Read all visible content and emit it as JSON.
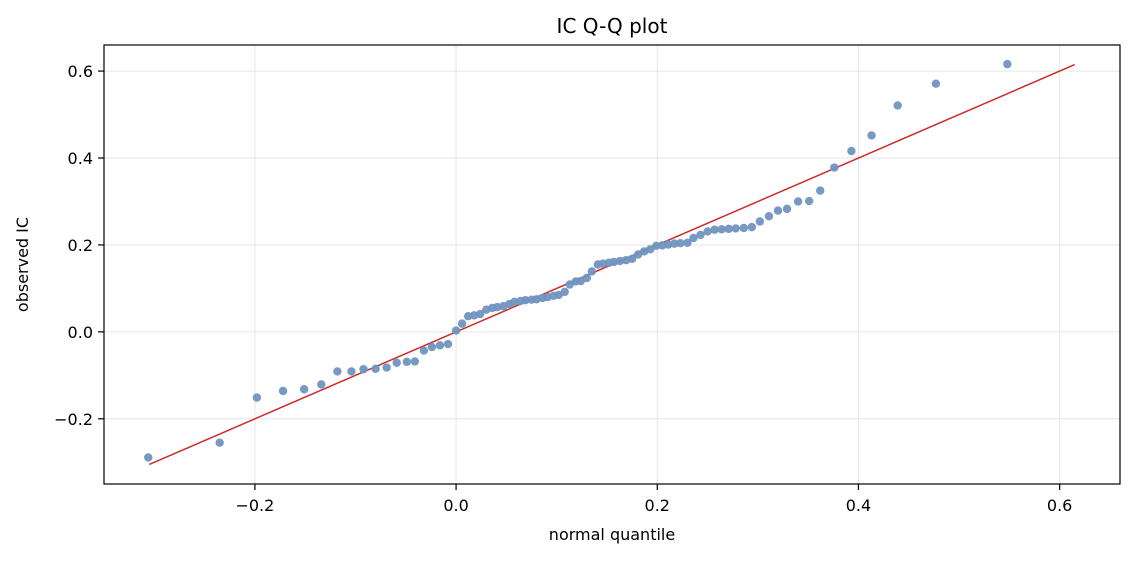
{
  "chart_data": {
    "type": "scatter",
    "title": "IC Q-Q plot",
    "xlabel": "normal quantile",
    "ylabel": "observed IC",
    "xlim": [
      -0.35,
      0.66
    ],
    "ylim": [
      -0.35,
      0.66
    ],
    "xticks": [
      -0.2,
      0.0,
      0.2,
      0.4,
      0.6
    ],
    "xtick_labels": [
      "−0.2",
      "0.0",
      "0.2",
      "0.4",
      "0.6"
    ],
    "yticks": [
      -0.2,
      0.0,
      0.2,
      0.4,
      0.6
    ],
    "ytick_labels": [
      "−0.2",
      "0.0",
      "0.2",
      "0.4",
      "0.6"
    ],
    "grid": true,
    "point_color": "#7093bf",
    "line_color": "#cc2a2a",
    "reference_line": {
      "x": [
        -0.305,
        0.615
      ],
      "y": [
        -0.305,
        0.615
      ]
    },
    "points": {
      "x": [
        -0.306,
        -0.235,
        -0.198,
        -0.172,
        -0.151,
        -0.134,
        -0.118,
        -0.104,
        -0.092,
        -0.08,
        -0.069,
        -0.059,
        -0.049,
        -0.041,
        -0.032,
        -0.024,
        -0.016,
        -0.008,
        0.0,
        0.006,
        0.012,
        0.018,
        0.024,
        0.03,
        0.036,
        0.041,
        0.047,
        0.053,
        0.058,
        0.064,
        0.069,
        0.075,
        0.08,
        0.086,
        0.091,
        0.097,
        0.102,
        0.108,
        0.113,
        0.119,
        0.124,
        0.13,
        0.135,
        0.141,
        0.146,
        0.152,
        0.157,
        0.163,
        0.169,
        0.175,
        0.181,
        0.187,
        0.193,
        0.199,
        0.205,
        0.211,
        0.217,
        0.223,
        0.23,
        0.236,
        0.243,
        0.25,
        0.257,
        0.264,
        0.271,
        0.278,
        0.286,
        0.294,
        0.302,
        0.311,
        0.32,
        0.329,
        0.34,
        0.351,
        0.362,
        0.376,
        0.393,
        0.413,
        0.439,
        0.477,
        0.548
      ],
      "y": [
        -0.289,
        -0.255,
        -0.151,
        -0.136,
        -0.132,
        -0.121,
        -0.091,
        -0.091,
        -0.086,
        -0.085,
        -0.082,
        -0.071,
        -0.069,
        -0.068,
        -0.043,
        -0.035,
        -0.031,
        -0.028,
        0.003,
        0.019,
        0.036,
        0.038,
        0.041,
        0.051,
        0.055,
        0.057,
        0.059,
        0.064,
        0.069,
        0.071,
        0.073,
        0.074,
        0.075,
        0.078,
        0.08,
        0.083,
        0.085,
        0.092,
        0.109,
        0.116,
        0.117,
        0.124,
        0.139,
        0.155,
        0.157,
        0.159,
        0.161,
        0.163,
        0.165,
        0.168,
        0.178,
        0.185,
        0.19,
        0.198,
        0.199,
        0.201,
        0.203,
        0.204,
        0.205,
        0.216,
        0.223,
        0.231,
        0.235,
        0.236,
        0.237,
        0.238,
        0.239,
        0.241,
        0.254,
        0.266,
        0.279,
        0.283,
        0.3,
        0.301,
        0.325,
        0.378,
        0.416,
        0.452,
        0.521,
        0.571,
        0.616
      ]
    }
  }
}
